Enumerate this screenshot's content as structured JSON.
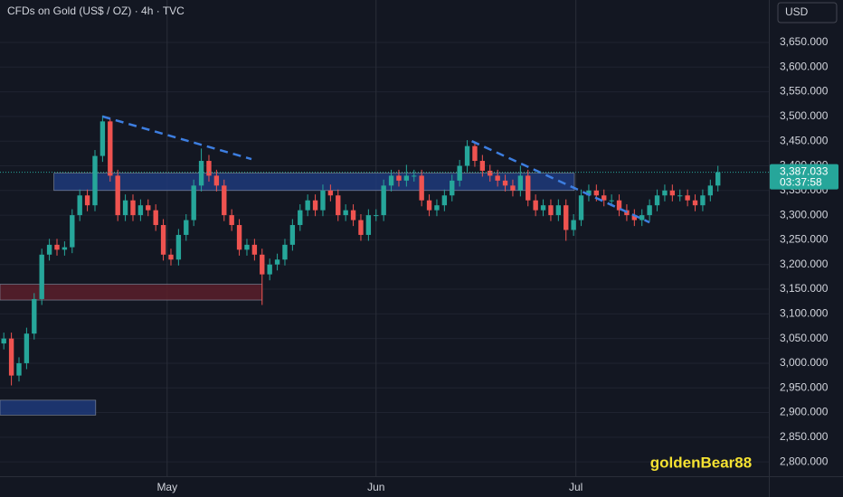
{
  "chart_data": {
    "type": "candlestick",
    "title": "CFDs on Gold (US$ / OZ) · 4h · TVC",
    "currency": "USD",
    "watermark": "goldenBear88",
    "up_color": "#26a69a",
    "down_color": "#ef5350",
    "grid": true,
    "open": [
      3040,
      3050,
      2975,
      3000,
      3060,
      3130,
      3220,
      3240,
      3230,
      3235,
      3300,
      3340,
      3320,
      3420,
      3490,
      3380,
      3300,
      3330,
      3300,
      3320,
      3310,
      3280,
      3220,
      3210,
      3260,
      3290,
      3360,
      3410,
      3380,
      3360,
      3300,
      3280,
      3230,
      3240,
      3220,
      3180,
      3200,
      3210,
      3240,
      3280,
      3310,
      3330,
      3310,
      3350,
      3340,
      3300,
      3310,
      3290,
      3260,
      3300,
      3300,
      3360,
      3380,
      3370,
      3380,
      3380,
      3330,
      3310,
      3320,
      3340,
      3370,
      3400,
      3440,
      3410,
      3390,
      3380,
      3370,
      3360,
      3350,
      3380,
      3330,
      3310,
      3320,
      3300,
      3320,
      3270,
      3290,
      3340,
      3350,
      3340,
      3330,
      3330,
      3310,
      3300,
      3290,
      3300,
      3320,
      3340,
      3350,
      3340,
      3340,
      3330,
      3320,
      3340,
      3360
    ],
    "high": [
      3062,
      3062,
      3012,
      3072,
      3142,
      3232,
      3252,
      3252,
      3247,
      3312,
      3352,
      3352,
      3432,
      3502,
      3495,
      3392,
      3342,
      3342,
      3332,
      3332,
      3322,
      3292,
      3232,
      3272,
      3302,
      3372,
      3435,
      3422,
      3392,
      3372,
      3312,
      3292,
      3252,
      3252,
      3232,
      3212,
      3222,
      3252,
      3292,
      3322,
      3342,
      3342,
      3362,
      3362,
      3352,
      3322,
      3322,
      3302,
      3312,
      3312,
      3372,
      3392,
      3392,
      3402,
      3392,
      3392,
      3342,
      3332,
      3352,
      3382,
      3412,
      3452,
      3448,
      3422,
      3402,
      3392,
      3382,
      3372,
      3400,
      3392,
      3342,
      3332,
      3332,
      3332,
      3332,
      3302,
      3352,
      3362,
      3362,
      3352,
      3342,
      3342,
      3322,
      3312,
      3312,
      3332,
      3352,
      3362,
      3362,
      3352,
      3352,
      3342,
      3352,
      3372,
      3400
    ],
    "low": [
      3028,
      2955,
      2963,
      2988,
      3048,
      3118,
      3208,
      3218,
      3218,
      3223,
      3288,
      3308,
      3308,
      3408,
      3368,
      3288,
      3288,
      3288,
      3288,
      3298,
      3268,
      3208,
      3198,
      3198,
      3248,
      3278,
      3348,
      3368,
      3348,
      3288,
      3268,
      3218,
      3218,
      3208,
      3118,
      3168,
      3188,
      3198,
      3228,
      3268,
      3298,
      3298,
      3298,
      3328,
      3288,
      3288,
      3278,
      3248,
      3248,
      3288,
      3288,
      3348,
      3358,
      3358,
      3368,
      3318,
      3298,
      3298,
      3308,
      3328,
      3358,
      3388,
      3398,
      3378,
      3368,
      3358,
      3348,
      3338,
      3338,
      3318,
      3298,
      3298,
      3288,
      3288,
      3248,
      3258,
      3278,
      3328,
      3328,
      3318,
      3318,
      3298,
      3288,
      3278,
      3278,
      3288,
      3308,
      3328,
      3328,
      3328,
      3318,
      3308,
      3308,
      3328,
      3348
    ],
    "close": [
      3050,
      2975,
      3000,
      3060,
      3130,
      3220,
      3240,
      3230,
      3235,
      3300,
      3340,
      3320,
      3420,
      3490,
      3380,
      3300,
      3330,
      3300,
      3320,
      3310,
      3280,
      3220,
      3210,
      3260,
      3290,
      3360,
      3410,
      3380,
      3360,
      3300,
      3280,
      3230,
      3240,
      3220,
      3180,
      3200,
      3210,
      3240,
      3280,
      3310,
      3330,
      3310,
      3350,
      3340,
      3300,
      3310,
      3290,
      3260,
      3300,
      3300,
      3360,
      3380,
      3370,
      3380,
      3380,
      3330,
      3310,
      3320,
      3340,
      3370,
      3400,
      3440,
      3410,
      3390,
      3380,
      3370,
      3360,
      3350,
      3380,
      3330,
      3310,
      3320,
      3300,
      3320,
      3270,
      3290,
      3340,
      3350,
      3340,
      3330,
      3330,
      3310,
      3300,
      3290,
      3300,
      3320,
      3340,
      3350,
      3340,
      3340,
      3330,
      3320,
      3340,
      3360,
      3387.033
    ],
    "last_price": {
      "value": 3387.033,
      "label": "3,387.033"
    },
    "countdown": "03:37:58",
    "xlim": [
      -0.5,
      100.7
    ],
    "xticks": [
      {
        "value": 21.5,
        "label": "May"
      },
      {
        "value": 49,
        "label": "Jun"
      },
      {
        "value": 75.3,
        "label": "Jul"
      }
    ],
    "ylim": [
      2771,
      3736
    ],
    "yticks": [
      {
        "value": 2800,
        "label": "2,800.000"
      },
      {
        "value": 2850,
        "label": "2,850.000"
      },
      {
        "value": 2900,
        "label": "2,900.000"
      },
      {
        "value": 2950,
        "label": "2,950.000"
      },
      {
        "value": 3000,
        "label": "3,000.000"
      },
      {
        "value": 3050,
        "label": "3,050.000"
      },
      {
        "value": 3100,
        "label": "3,100.000"
      },
      {
        "value": 3150,
        "label": "3,150.000"
      },
      {
        "value": 3200,
        "label": "3,200.000"
      },
      {
        "value": 3250,
        "label": "3,250.000"
      },
      {
        "value": 3300,
        "label": "3,300.000"
      },
      {
        "value": 3350,
        "label": "3,350.000"
      },
      {
        "value": 3400,
        "label": "3,400.000"
      },
      {
        "value": 3450,
        "label": "3,450.000"
      },
      {
        "value": 3500,
        "label": "3,500.000"
      },
      {
        "value": 3550,
        "label": "3,550.000"
      },
      {
        "value": 3600,
        "label": "3,600.000"
      },
      {
        "value": 3650,
        "label": "3,650.000"
      }
    ],
    "zones": [
      {
        "x": [
          6.6,
          75.1
        ],
        "y": [
          3350,
          3385
        ],
        "color": "#1e3a7a"
      },
      {
        "x": [
          -0.5,
          34.0
        ],
        "y": [
          3128,
          3160
        ],
        "color": "#5a1f2a"
      },
      {
        "x": [
          -0.5,
          12.1
        ],
        "y": [
          2895,
          2925
        ],
        "color": "#1e3a7a"
      }
    ],
    "trendlines": [
      {
        "x": [
          13,
          32.6
        ],
        "y": [
          3500,
          3413.6
        ],
        "color": "#3d7ee0"
      },
      {
        "x": [
          61.6,
          85
        ],
        "y": [
          3450,
          3285.4
        ],
        "color": "#3d7ee0"
      }
    ]
  }
}
